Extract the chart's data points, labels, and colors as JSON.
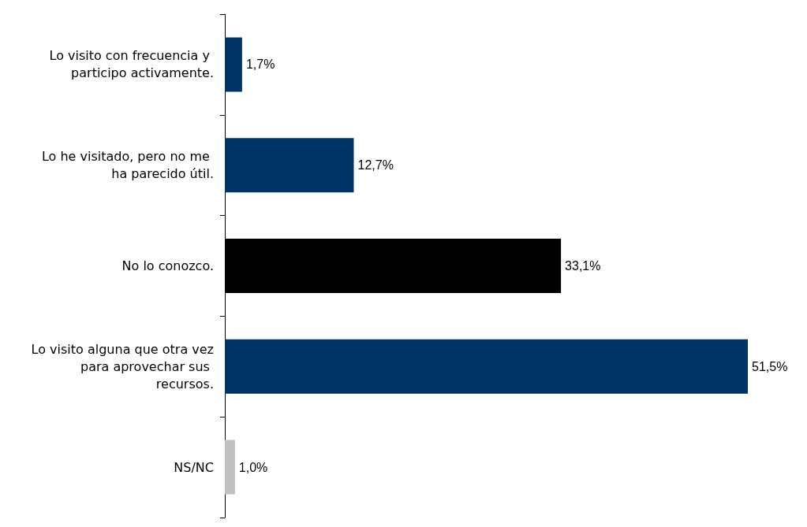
{
  "chart_data": {
    "type": "bar",
    "orientation": "horizontal",
    "categories": [
      "Lo visito con frecuencia y participo activamente.",
      "Lo he visitado, pero no me ha parecido útil.",
      "No lo conozco.",
      "Lo visito alguna que otra vez para aprovechar sus recursos.",
      "NS/NC"
    ],
    "values": [
      1.7,
      12.7,
      33.1,
      51.5,
      1.0
    ],
    "value_labels": [
      "1,7%",
      "12,7%",
      "33,1%",
      "51,5%",
      "1,0%"
    ],
    "colors": [
      "#003366",
      "#003366",
      "#000000",
      "#003366",
      "#c0c0c0"
    ]
  }
}
